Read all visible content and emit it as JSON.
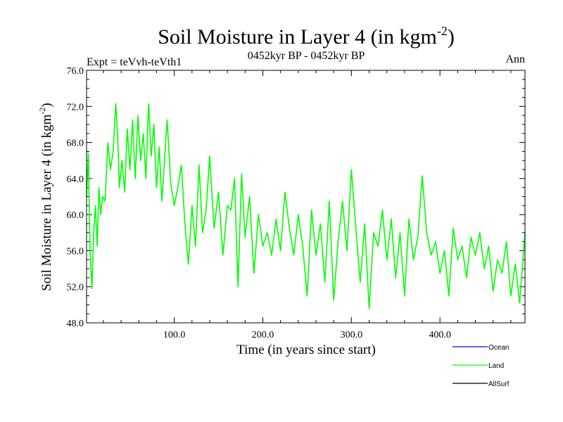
{
  "chart_data": {
    "type": "line",
    "title": "Soil Moisture in Layer 4 (in kgm",
    "title_superscript": "-2",
    "title_suffix": ")",
    "subtitle": "0452kyr BP - 0452kyr BP",
    "left_label": "Expt = teVvh-teVth1",
    "right_label": "Ann",
    "xlabel": "Time (in years since start)",
    "ylabel": "Soil Moisture in Layer 4 (in kgm",
    "ylabel_superscript": "-2",
    "ylabel_suffix": ")",
    "xlim": [
      1,
      496
    ],
    "ylim": [
      48,
      76
    ],
    "xticks": [
      100,
      200,
      300,
      400
    ],
    "xtick_labels": [
      "100.0",
      "200.0",
      "300.0",
      "400.0"
    ],
    "yticks": [
      48,
      52,
      56,
      60,
      64,
      68,
      72,
      76
    ],
    "ytick_labels": [
      "48.0",
      "52.0",
      "56.0",
      "60.0",
      "64.0",
      "68.0",
      "72.0",
      "76.0"
    ],
    "grid": false,
    "legend_position": "bottom-right",
    "series": [
      {
        "name": "Ocean",
        "color": "#0000ff",
        "x": [],
        "y": []
      },
      {
        "name": "Land",
        "color": "#00ff00",
        "x": [
          1,
          3,
          5,
          7,
          9,
          11,
          13,
          15,
          17,
          19,
          22,
          25,
          28,
          31,
          34,
          36,
          38,
          41,
          44,
          47,
          50,
          53,
          56,
          59,
          62,
          65,
          68,
          71,
          74,
          77,
          80,
          83,
          86,
          89,
          92,
          96,
          100,
          104,
          108,
          112,
          116,
          120,
          124,
          128,
          132,
          136,
          140,
          145,
          150,
          155,
          160,
          164,
          168,
          172,
          176,
          180,
          185,
          190,
          195,
          200,
          205,
          210,
          215,
          220,
          225,
          230,
          235,
          240,
          245,
          250,
          255,
          260,
          265,
          270,
          275,
          280,
          285,
          290,
          295,
          300,
          305,
          310,
          315,
          320,
          325,
          330,
          335,
          340,
          345,
          350,
          355,
          360,
          365,
          370,
          375,
          380,
          385,
          390,
          395,
          400,
          405,
          410,
          415,
          420,
          425,
          430,
          435,
          440,
          445,
          450,
          455,
          460,
          465,
          470,
          475,
          480,
          485,
          490,
          494,
          496
        ],
        "y": [
          62,
          66.8,
          56,
          51.8,
          58,
          61,
          56.5,
          63,
          60,
          62,
          61.5,
          68,
          65,
          67,
          72.3,
          69,
          63,
          66,
          62.5,
          69.5,
          65,
          70.5,
          64,
          71,
          66,
          69,
          64,
          72.3,
          66.5,
          70,
          63,
          67.5,
          61.5,
          66,
          70.5,
          63.5,
          61,
          63,
          65.5,
          59,
          54.5,
          61,
          56.5,
          65.5,
          58,
          60.5,
          66.5,
          58.5,
          62.5,
          55.5,
          61,
          60.5,
          64,
          52,
          64.5,
          57.5,
          62,
          53.5,
          60,
          56.5,
          58,
          55.5,
          59.5,
          56,
          62.5,
          58.5,
          55.5,
          60,
          56.5,
          51,
          60.5,
          55.5,
          59,
          52.5,
          61.5,
          50.5,
          57,
          61.5,
          56,
          65,
          58.5,
          52.5,
          59,
          49.6,
          58,
          56.5,
          60.5,
          55,
          59.5,
          53,
          58,
          51,
          59.5,
          55,
          57.5,
          64.3,
          58,
          55.5,
          57,
          53.5,
          56,
          51,
          58.5,
          55,
          56.5,
          53,
          57.5,
          55.5,
          58,
          54,
          56.5,
          51.5,
          55,
          53.5,
          57,
          51,
          54.5,
          50.2,
          55.5,
          58
        ]
      },
      {
        "name": "AllSurf",
        "color": "#000000",
        "x": [],
        "y": []
      }
    ]
  }
}
